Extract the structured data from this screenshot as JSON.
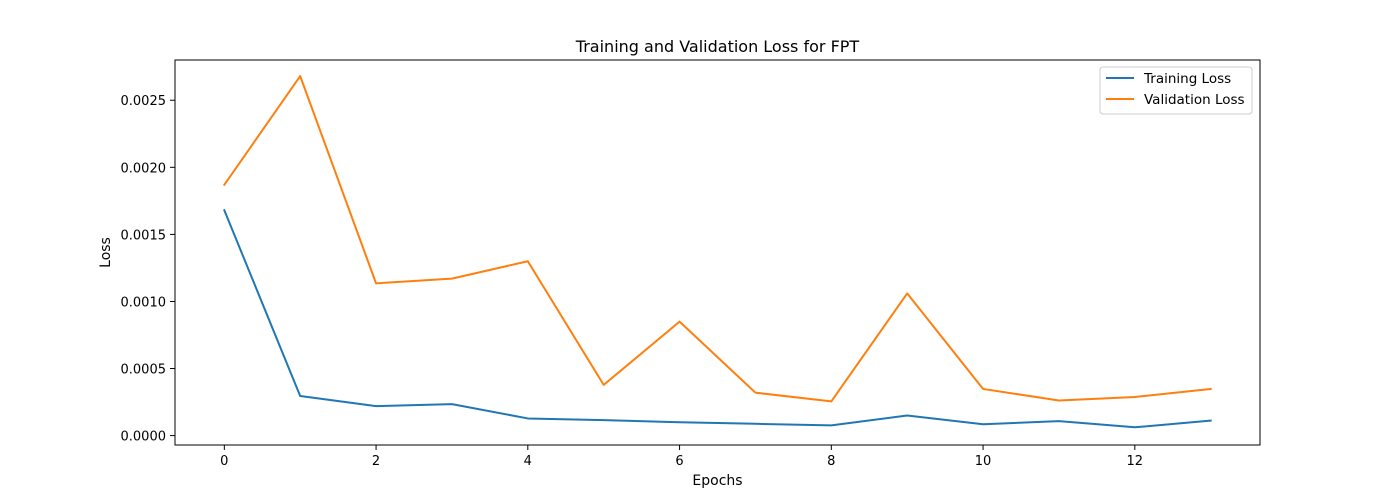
{
  "chart_data": {
    "type": "line",
    "title": "Training and Validation Loss for FPT",
    "xlabel": "Epochs",
    "ylabel": "Loss",
    "x": [
      0,
      1,
      2,
      3,
      4,
      5,
      6,
      7,
      8,
      9,
      10,
      11,
      12,
      13
    ],
    "xlim": [
      -0.65,
      13.65
    ],
    "ylim": [
      -7e-05,
      0.0028
    ],
    "xticks": [
      0,
      2,
      4,
      6,
      8,
      10,
      12
    ],
    "xtick_labels": [
      "0",
      "2",
      "4",
      "6",
      "8",
      "10",
      "12"
    ],
    "yticks": [
      0.0,
      0.0005,
      0.001,
      0.0015,
      0.002,
      0.0025
    ],
    "ytick_labels": [
      "0.0000",
      "0.0005",
      "0.0010",
      "0.0015",
      "0.0020",
      "0.0025"
    ],
    "grid": false,
    "legend_position": "top-right",
    "series": [
      {
        "name": "Training Loss",
        "color": "#1f77b4",
        "values": [
          0.00168,
          0.000295,
          0.00022,
          0.000235,
          0.000128,
          0.000115,
          0.0001,
          8.8e-05,
          7.6e-05,
          0.00015,
          8.5e-05,
          0.000108,
          6.2e-05,
          0.000112
        ]
      },
      {
        "name": "Validation Loss",
        "color": "#ff7f0e",
        "values": [
          0.00187,
          0.00268,
          0.001135,
          0.00117,
          0.0013,
          0.000378,
          0.00085,
          0.00032,
          0.000255,
          0.00106,
          0.000348,
          0.000262,
          0.000288,
          0.000348
        ]
      }
    ]
  }
}
